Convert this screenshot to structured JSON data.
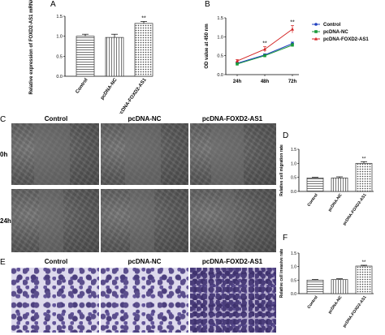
{
  "labels": {
    "a": "A",
    "b": "B",
    "c": "C",
    "d": "D",
    "e": "E",
    "f": "F"
  },
  "colors": {
    "control": "#1f3fbf",
    "nc": "#1a9a3a",
    "foxd2": "#d42424",
    "bar_fill": "#ffffff",
    "bar_stroke": "#333333"
  },
  "micrographs": {
    "columns": [
      "Control",
      "pcDNA-NC",
      "pcDNA-FOXD2-AS1"
    ],
    "rows": [
      "0h",
      "24h"
    ],
    "invasion_columns": [
      "Control",
      "pcDNA-NC",
      "pcDNA-FOXD2-AS1"
    ]
  },
  "chart_data": [
    {
      "id": "A",
      "type": "bar",
      "categories": [
        "Control",
        "pcDNA-NC",
        "pcDNA-FOXD2-AS1"
      ],
      "values": [
        1.0,
        0.97,
        1.32
      ],
      "errors": [
        0.05,
        0.08,
        0.05
      ],
      "ylabel": "Relative expression of FOXD2-AS1 mRNA",
      "ylim": [
        0,
        1.5
      ],
      "yticks": [
        "0.0",
        "0.5",
        "1.0",
        "1.5"
      ],
      "significance": [
        "",
        "",
        "**"
      ],
      "patterns": [
        "hlines",
        "vlines",
        "dots"
      ]
    },
    {
      "id": "B",
      "type": "line",
      "x": [
        "24h",
        "48h",
        "72h"
      ],
      "series": [
        {
          "name": "Control",
          "values": [
            0.3,
            0.52,
            0.82
          ],
          "errors": [
            0.03,
            0.03,
            0.04
          ],
          "marker": "circle"
        },
        {
          "name": "pcDNA-NC",
          "values": [
            0.28,
            0.5,
            0.78
          ],
          "errors": [
            0.03,
            0.03,
            0.04
          ],
          "marker": "square"
        },
        {
          "name": "pcDNA-FOXD2-AS1",
          "values": [
            0.36,
            0.67,
            1.2
          ],
          "errors": [
            0.04,
            0.07,
            0.1
          ],
          "marker": "triangle"
        }
      ],
      "ylabel": "OD value at 450 nm",
      "ylim": [
        0,
        1.5
      ],
      "yticks": [
        "0.0",
        "0.5",
        "1.0",
        "1.5"
      ],
      "significance": [
        "",
        "**",
        "**"
      ],
      "legend_position": "top-right"
    },
    {
      "id": "D",
      "type": "bar",
      "categories": [
        "Control",
        "pcDNA-NC",
        "pcDNA-FOXD2-AS1"
      ],
      "values": [
        0.48,
        0.48,
        1.0
      ],
      "errors": [
        0.02,
        0.04,
        0.06
      ],
      "ylabel": "Relative cell migration rate",
      "ylim": [
        0,
        1.5
      ],
      "yticks": [
        "0.0",
        "0.5",
        "1.0",
        "1.5"
      ],
      "significance": [
        "",
        "",
        "**"
      ],
      "patterns": [
        "hlines",
        "vlines",
        "dots"
      ]
    },
    {
      "id": "F",
      "type": "bar",
      "categories": [
        "Control",
        "pcDNA-NC",
        "pcDNA-FOXD2-AS1"
      ],
      "values": [
        0.5,
        0.52,
        1.02
      ],
      "errors": [
        0.02,
        0.03,
        0.03
      ],
      "ylabel": "Relative cell invasive rate",
      "ylim": [
        0,
        1.5
      ],
      "yticks": [
        "0.0",
        "0.5",
        "1.0",
        "1.5"
      ],
      "significance": [
        "",
        "",
        "**"
      ],
      "patterns": [
        "hlines",
        "vlines",
        "dots"
      ]
    }
  ]
}
